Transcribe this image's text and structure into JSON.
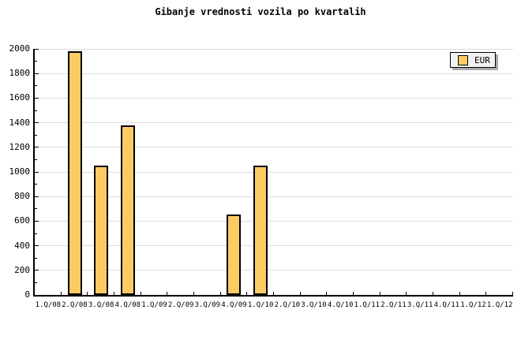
{
  "title": "Gibanje vrednosti vozila po kvartalih",
  "legend": {
    "label": "EUR"
  },
  "colors": {
    "bar_fill": "#FCCB64",
    "bar_border": "#000000",
    "grid": "#DCDCDC",
    "axis": "#000000",
    "legend_bg": "#F2F2F2",
    "legend_shadow": "#AAAAAA",
    "background": "#FFFFFF"
  },
  "chart_data": {
    "type": "bar",
    "title": "Gibanje vrednosti vozila po kvartalih",
    "categories": [
      "1.Q/08",
      "2.Q/08",
      "3.Q/08",
      "4.Q/08",
      "1.Q/09",
      "2.Q/09",
      "3.Q/09",
      "4.Q/09",
      "1.Q/10",
      "2.Q/10",
      "3.Q/10",
      "4.Q/10",
      "1.Q/11",
      "2.Q/11",
      "3.Q/11",
      "4.Q/11",
      "1.Q/12",
      "1.Q/12"
    ],
    "series": [
      {
        "name": "EUR",
        "values": [
          null,
          1980,
          1050,
          1380,
          null,
          null,
          null,
          655,
          1050,
          null,
          null,
          null,
          null,
          null,
          null,
          null,
          null,
          null
        ]
      }
    ],
    "xlabel": "",
    "ylabel": "",
    "ylim": [
      0,
      2000
    ],
    "yticks": [
      0,
      200,
      400,
      600,
      800,
      1000,
      1200,
      1400,
      1600,
      1800,
      2000
    ],
    "ytick_step": 200,
    "yminor_step": 100,
    "grid": true,
    "legend_position": "top-right"
  }
}
